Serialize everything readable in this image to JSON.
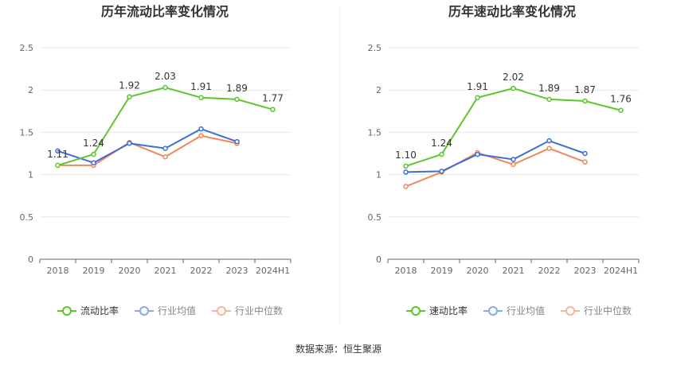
{
  "colors": {
    "primary": "#5cc72c",
    "industry_avg": "#3b6fd6",
    "industry_median": "#f0875a",
    "grid": "#e6e9f2",
    "axis": "#666666"
  },
  "source": "数据来源：恒生聚源",
  "chart_data": [
    {
      "type": "line",
      "title": "历年流动比率变化情况",
      "categories": [
        "2018",
        "2019",
        "2020",
        "2021",
        "2022",
        "2023",
        "2024H1"
      ],
      "ylim": [
        0,
        2.5
      ],
      "yticks": [
        "0",
        "0.5",
        "1",
        "1.5",
        "2",
        "2.5"
      ],
      "grid": true,
      "legend_position": "bottom",
      "series": [
        {
          "name": "流动比率",
          "values": [
            1.11,
            1.24,
            1.92,
            2.03,
            1.91,
            1.89,
            1.77
          ],
          "labels": [
            "1.11",
            "1.24",
            "1.92",
            "2.03",
            "1.91",
            "1.89",
            "1.77"
          ]
        },
        {
          "name": "行业均值",
          "values": [
            1.28,
            1.14,
            1.37,
            1.31,
            1.54,
            1.39,
            null
          ]
        },
        {
          "name": "行业中位数",
          "values": [
            1.11,
            1.11,
            1.38,
            1.21,
            1.46,
            1.37,
            null
          ]
        }
      ]
    },
    {
      "type": "line",
      "title": "历年速动比率变化情况",
      "categories": [
        "2018",
        "2019",
        "2020",
        "2021",
        "2022",
        "2023",
        "2024H1"
      ],
      "ylim": [
        0,
        2.5
      ],
      "yticks": [
        "0",
        "0.5",
        "1",
        "1.5",
        "2",
        "2.5"
      ],
      "grid": true,
      "legend_position": "bottom",
      "series": [
        {
          "name": "速动比率",
          "values": [
            1.1,
            1.24,
            1.91,
            2.02,
            1.89,
            1.87,
            1.76
          ],
          "labels": [
            "1.10",
            "1.24",
            "1.91",
            "2.02",
            "1.89",
            "1.87",
            "1.76"
          ]
        },
        {
          "name": "行业均值",
          "values": [
            1.03,
            1.04,
            1.24,
            1.18,
            1.4,
            1.25,
            null
          ]
        },
        {
          "name": "行业中位数",
          "values": [
            0.86,
            1.03,
            1.26,
            1.12,
            1.31,
            1.15,
            null
          ]
        }
      ]
    }
  ]
}
